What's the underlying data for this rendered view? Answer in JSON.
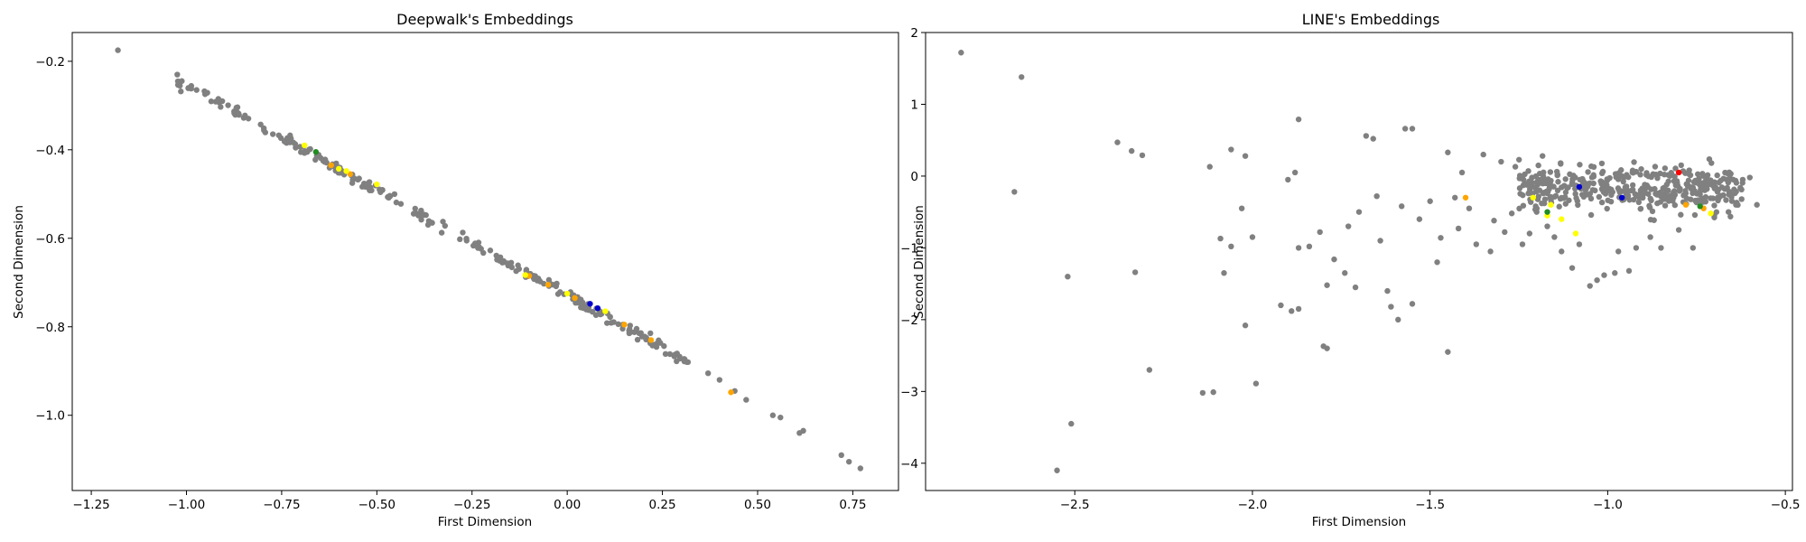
{
  "chart_data": [
    {
      "type": "scatter",
      "title": "Deepwalk's Embeddings",
      "xlabel": "First Dimension",
      "ylabel": "Second Dimension",
      "xlim": [
        -1.3,
        0.87
      ],
      "ylim": [
        -1.17,
        -0.135
      ],
      "xticks": [
        -1.25,
        -1.0,
        -0.75,
        -0.5,
        -0.25,
        0.0,
        0.25,
        0.5,
        0.75
      ],
      "xtick_labels": [
        "−1.25",
        "−1.00",
        "−0.75",
        "−0.50",
        "−0.25",
        "0.00",
        "0.25",
        "0.50",
        "0.75"
      ],
      "yticks": [
        -0.2,
        -0.4,
        -0.6,
        -0.8,
        -1.0
      ],
      "ytick_labels": [
        "−0.2",
        "−0.4",
        "−0.6",
        "−0.8",
        "−1.0"
      ],
      "grid": false,
      "band": {
        "x_start": -1.03,
        "y_start": -0.24,
        "x_end": 0.32,
        "y_end": -0.88,
        "count": 260,
        "spread": 0.006
      },
      "series": [
        {
          "color": "#808080",
          "points": [
            [
              -1.18,
              -0.175
            ],
            [
              0.37,
              -0.905
            ],
            [
              0.4,
              -0.92
            ],
            [
              0.44,
              -0.945
            ],
            [
              0.47,
              -0.965
            ],
            [
              0.54,
              -1.0
            ],
            [
              0.56,
              -1.005
            ],
            [
              0.61,
              -1.04
            ],
            [
              0.62,
              -1.035
            ],
            [
              0.72,
              -1.09
            ],
            [
              0.74,
              -1.105
            ],
            [
              0.77,
              -1.12
            ]
          ]
        },
        {
          "color": "#ffa500",
          "points": [
            [
              0.43,
              -0.948
            ],
            [
              -0.62,
              -0.435
            ],
            [
              -0.57,
              -0.455
            ],
            [
              -0.1,
              -0.685
            ],
            [
              -0.05,
              -0.705
            ],
            [
              0.02,
              -0.735
            ],
            [
              0.15,
              -0.795
            ],
            [
              0.22,
              -0.83
            ]
          ]
        },
        {
          "color": "#ffff00",
          "points": [
            [
              -0.69,
              -0.39
            ],
            [
              -0.6,
              -0.443
            ],
            [
              -0.58,
              -0.448
            ],
            [
              -0.5,
              -0.478
            ],
            [
              -0.11,
              -0.683
            ],
            [
              0.0,
              -0.725
            ],
            [
              0.1,
              -0.765
            ]
          ]
        },
        {
          "color": "#0000cd",
          "points": [
            [
              0.06,
              -0.748
            ],
            [
              0.08,
              -0.758
            ]
          ]
        },
        {
          "color": "#228b22",
          "points": [
            [
              -0.66,
              -0.405
            ]
          ]
        }
      ]
    },
    {
      "type": "scatter",
      "title": "LINE's Embeddings",
      "xlabel": "First Dimension",
      "ylabel": "Second Dimension",
      "xlim": [
        -2.92,
        -0.48
      ],
      "ylim": [
        -4.38,
        2.0
      ],
      "xticks": [
        -2.5,
        -2.0,
        -1.5,
        -1.0,
        -0.5
      ],
      "xtick_labels": [
        "−2.5",
        "−2.0",
        "−1.5",
        "−1.0",
        "−0.5"
      ],
      "yticks": [
        2,
        1,
        0,
        -1,
        -2,
        -3,
        -4
      ],
      "ytick_labels": [
        "2",
        "1",
        "0",
        "−1",
        "−2",
        "−3",
        "−4"
      ],
      "grid": false,
      "cluster": {
        "x_min": -1.25,
        "x_max": -0.62,
        "y_center": -0.18,
        "y_spread": 0.25,
        "count": 420
      },
      "series": [
        {
          "color": "#808080",
          "points": [
            [
              -2.82,
              1.72
            ],
            [
              -2.65,
              1.38
            ],
            [
              -2.67,
              -0.22
            ],
            [
              -2.52,
              -1.4
            ],
            [
              -2.51,
              -3.45
            ],
            [
              -2.55,
              -4.1
            ],
            [
              -2.38,
              0.47
            ],
            [
              -2.34,
              0.35
            ],
            [
              -2.31,
              0.29
            ],
            [
              -2.33,
              -1.34
            ],
            [
              -2.29,
              -2.7
            ],
            [
              -2.14,
              -3.02
            ],
            [
              -2.11,
              -3.01
            ],
            [
              -2.12,
              0.13
            ],
            [
              -2.09,
              -0.87
            ],
            [
              -2.08,
              -1.35
            ],
            [
              -2.06,
              -0.98
            ],
            [
              -2.06,
              0.37
            ],
            [
              -2.02,
              0.28
            ],
            [
              -2.03,
              -0.45
            ],
            [
              -2.02,
              -2.08
            ],
            [
              -2.0,
              -0.85
            ],
            [
              -1.99,
              -2.89
            ],
            [
              -1.92,
              -1.8
            ],
            [
              -1.9,
              -0.05
            ],
            [
              -1.87,
              0.79
            ],
            [
              -1.88,
              0.05
            ],
            [
              -1.87,
              -1.85
            ],
            [
              -1.89,
              -1.88
            ],
            [
              -1.87,
              -1.0
            ],
            [
              -1.84,
              -0.98
            ],
            [
              -1.81,
              -0.78
            ],
            [
              -1.8,
              -2.37
            ],
            [
              -1.79,
              -2.4
            ],
            [
              -1.79,
              -1.52
            ],
            [
              -1.77,
              -1.16
            ],
            [
              -1.74,
              -1.35
            ],
            [
              -1.73,
              -0.7
            ],
            [
              -1.71,
              -1.55
            ],
            [
              -1.7,
              -0.5
            ],
            [
              -1.68,
              0.56
            ],
            [
              -1.66,
              0.52
            ],
            [
              -1.65,
              -0.28
            ],
            [
              -1.64,
              -0.9
            ],
            [
              -1.62,
              -1.6
            ],
            [
              -1.61,
              -1.82
            ],
            [
              -1.59,
              -2.0
            ],
            [
              -1.58,
              -0.42
            ],
            [
              -1.57,
              0.66
            ],
            [
              -1.55,
              0.66
            ],
            [
              -1.55,
              -1.78
            ],
            [
              -1.53,
              -0.6
            ],
            [
              -1.5,
              -0.35
            ],
            [
              -1.48,
              -1.2
            ],
            [
              -1.47,
              -0.86
            ],
            [
              -1.45,
              -2.45
            ],
            [
              -1.45,
              0.33
            ],
            [
              -1.43,
              -0.3
            ],
            [
              -1.42,
              -0.73
            ],
            [
              -1.41,
              0.05
            ],
            [
              -1.39,
              -0.45
            ],
            [
              -1.37,
              -0.95
            ],
            [
              -1.35,
              0.3
            ],
            [
              -1.33,
              -1.05
            ],
            [
              -1.32,
              -0.62
            ],
            [
              -1.3,
              0.2
            ],
            [
              -1.29,
              -0.78
            ],
            [
              -1.27,
              -0.52
            ],
            [
              -1.26,
              0.13
            ],
            [
              -1.24,
              -0.95
            ],
            [
              -1.22,
              -0.8
            ],
            [
              -1.2,
              -0.5
            ],
            [
              -1.17,
              -0.7
            ],
            [
              -1.15,
              -0.85
            ],
            [
              -1.13,
              -1.05
            ],
            [
              -1.1,
              -1.28
            ],
            [
              -1.08,
              -0.95
            ],
            [
              -1.05,
              -1.53
            ],
            [
              -1.03,
              -1.45
            ],
            [
              -1.01,
              -1.38
            ],
            [
              -0.98,
              -1.35
            ],
            [
              -0.97,
              -1.05
            ],
            [
              -0.94,
              -1.32
            ],
            [
              -0.92,
              -1.0
            ],
            [
              -0.88,
              -0.85
            ],
            [
              -0.85,
              -1.0
            ],
            [
              -0.8,
              -0.75
            ],
            [
              -0.76,
              -1.0
            ],
            [
              -0.7,
              -0.55
            ],
            [
              -0.66,
              -0.5
            ],
            [
              -0.62,
              -0.05
            ],
            [
              -0.58,
              -0.4
            ],
            [
              -0.6,
              -0.02
            ]
          ]
        },
        {
          "color": "#ffa500",
          "points": [
            [
              -1.4,
              -0.3
            ],
            [
              -0.78,
              -0.4
            ],
            [
              -0.73,
              -0.45
            ]
          ]
        },
        {
          "color": "#ffff00",
          "points": [
            [
              -1.21,
              -0.3
            ],
            [
              -1.17,
              -0.55
            ],
            [
              -1.16,
              -0.4
            ],
            [
              -1.13,
              -0.6
            ],
            [
              -1.09,
              -0.8
            ],
            [
              -0.71,
              -0.52
            ]
          ]
        },
        {
          "color": "#ff0000",
          "points": [
            [
              -0.8,
              0.05
            ]
          ]
        },
        {
          "color": "#0000cd",
          "points": [
            [
              -1.08,
              -0.15
            ],
            [
              -0.96,
              -0.3
            ]
          ]
        },
        {
          "color": "#228b22",
          "points": [
            [
              -1.17,
              -0.5
            ],
            [
              -0.74,
              -0.42
            ]
          ]
        }
      ]
    }
  ]
}
